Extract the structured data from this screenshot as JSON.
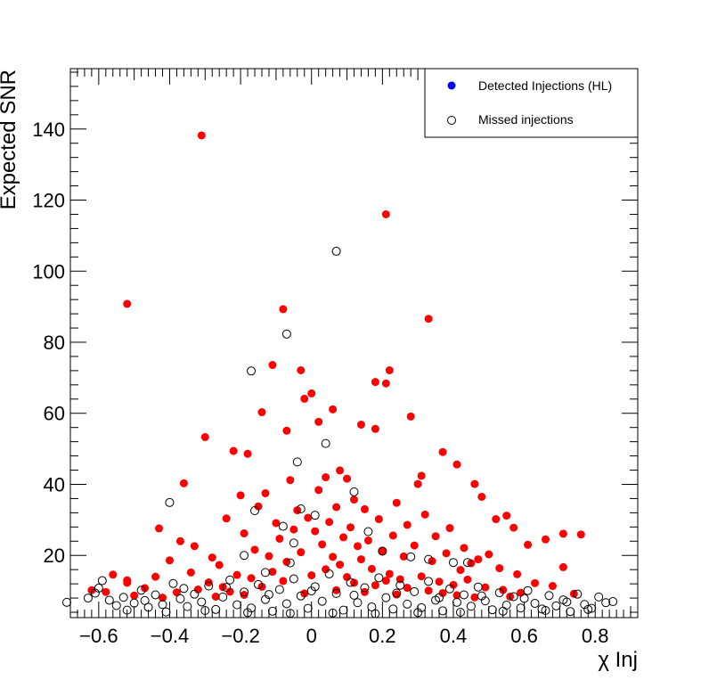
{
  "chart_data": {
    "type": "scatter",
    "title": "",
    "xlabel": "χ Inj",
    "ylabel": "Expected SNR",
    "xlim": [
      -0.68,
      0.92
    ],
    "ylim": [
      2.5,
      157
    ],
    "x_ticks": [
      -0.6,
      -0.4,
      -0.2,
      0,
      0.2,
      0.4,
      0.6,
      0.8
    ],
    "x_tick_labels": [
      "−0.6",
      "−0.4",
      "−0.2",
      "0",
      "0.2",
      "0.4",
      "0.6",
      "0.8"
    ],
    "y_ticks": [
      20,
      40,
      60,
      80,
      100,
      120,
      140
    ],
    "y_tick_labels": [
      "20",
      "40",
      "60",
      "80",
      "100",
      "120",
      "140"
    ],
    "grid": false,
    "legend_position": "top-right",
    "colors": {
      "detected": "#ff0000",
      "legend_detected_marker": "#0000ff",
      "missed": "#000000"
    },
    "series": [
      {
        "name": "Detected Injections (HL)",
        "marker": "filled-circle",
        "points": [
          [
            -0.31,
            138.2
          ],
          [
            0.21,
            116.0
          ],
          [
            -0.52,
            90.8
          ],
          [
            0.33,
            86.6
          ],
          [
            -0.08,
            89.3
          ],
          [
            -0.11,
            73.6
          ],
          [
            0.22,
            72.1
          ],
          [
            0.18,
            68.8
          ],
          [
            0.21,
            68.4
          ],
          [
            -0.03,
            72.1
          ],
          [
            -0.02,
            64.1
          ],
          [
            0.0,
            65.6
          ],
          [
            -0.3,
            53.3
          ],
          [
            0.28,
            59.1
          ],
          [
            -0.14,
            60.3
          ],
          [
            0.06,
            61.1
          ],
          [
            0.02,
            57.6
          ],
          [
            -0.07,
            55.1
          ],
          [
            0.14,
            56.8
          ],
          [
            0.18,
            55.6
          ],
          [
            -0.22,
            49.4
          ],
          [
            -0.18,
            48.6
          ],
          [
            0.37,
            49.1
          ],
          [
            0.41,
            45.6
          ],
          [
            -0.36,
            40.3
          ],
          [
            0.31,
            42.4
          ],
          [
            0.3,
            40.1
          ],
          [
            -0.2,
            36.9
          ],
          [
            0.46,
            40.1
          ],
          [
            0.48,
            36.5
          ],
          [
            -0.43,
            27.6
          ],
          [
            -0.52,
            13.0
          ],
          [
            0.76,
            25.9
          ],
          [
            0.71,
            26.1
          ],
          [
            0.66,
            24.5
          ],
          [
            0.55,
            31.2
          ],
          [
            0.57,
            27.8
          ],
          [
            0.52,
            30.2
          ],
          [
            0.61,
            23.0
          ],
          [
            0.71,
            16.7
          ],
          [
            -0.56,
            14.6
          ],
          [
            -0.52,
            12.3
          ],
          [
            -0.62,
            10.2
          ],
          [
            -0.58,
            9.7
          ],
          [
            -0.47,
            10.8
          ],
          [
            -0.4,
            18.6
          ],
          [
            -0.37,
            24.0
          ],
          [
            -0.33,
            22.6
          ],
          [
            -0.28,
            19.4
          ],
          [
            -0.24,
            30.4
          ],
          [
            -0.19,
            26.2
          ],
          [
            -0.15,
            33.8
          ],
          [
            -0.13,
            37.5
          ],
          [
            -0.1,
            29.1
          ],
          [
            -0.06,
            41.2
          ],
          [
            -0.04,
            32.7
          ],
          [
            0.02,
            38.4
          ],
          [
            0.04,
            42.0
          ],
          [
            0.08,
            43.9
          ],
          [
            0.1,
            41.6
          ],
          [
            0.12,
            35.7
          ],
          [
            0.15,
            33.0
          ],
          [
            0.19,
            30.2
          ],
          [
            0.24,
            34.8
          ],
          [
            0.27,
            28.6
          ],
          [
            0.32,
            31.5
          ],
          [
            0.35,
            25.4
          ],
          [
            0.39,
            27.7
          ],
          [
            0.43,
            22.1
          ],
          [
            0.47,
            18.9
          ],
          [
            0.5,
            20.3
          ],
          [
            0.53,
            16.4
          ],
          [
            0.58,
            14.7
          ],
          [
            0.63,
            12.2
          ],
          [
            0.68,
            11.4
          ],
          [
            0.74,
            9.2
          ],
          [
            -0.44,
            14.0
          ],
          [
            -0.34,
            15.2
          ],
          [
            -0.26,
            17.3
          ],
          [
            -0.21,
            14.5
          ],
          [
            -0.16,
            21.6
          ],
          [
            -0.12,
            19.8
          ],
          [
            -0.09,
            24.7
          ],
          [
            -0.05,
            27.3
          ],
          [
            -0.01,
            30.6
          ],
          [
            0.01,
            26.8
          ],
          [
            0.05,
            29.4
          ],
          [
            0.07,
            33.6
          ],
          [
            0.09,
            25.1
          ],
          [
            0.11,
            27.9
          ],
          [
            0.13,
            22.6
          ],
          [
            0.16,
            24.2
          ],
          [
            0.2,
            21.3
          ],
          [
            0.23,
            25.6
          ],
          [
            0.26,
            19.7
          ],
          [
            0.29,
            22.8
          ],
          [
            0.34,
            18.4
          ],
          [
            0.38,
            20.6
          ],
          [
            0.42,
            15.9
          ],
          [
            0.45,
            17.8
          ],
          [
            -0.29,
            12.4
          ],
          [
            -0.25,
            11.1
          ],
          [
            -0.17,
            13.6
          ],
          [
            -0.11,
            15.4
          ],
          [
            -0.07,
            18.2
          ],
          [
            -0.03,
            20.9
          ],
          [
            0.03,
            23.1
          ],
          [
            0.06,
            19.6
          ],
          [
            0.08,
            17.4
          ],
          [
            0.14,
            18.9
          ],
          [
            0.17,
            16.2
          ],
          [
            0.22,
            14.8
          ],
          [
            0.25,
            13.3
          ],
          [
            0.31,
            14.1
          ],
          [
            0.36,
            12.6
          ],
          [
            0.4,
            11.7
          ],
          [
            0.44,
            13.2
          ],
          [
            0.49,
            11.0
          ],
          [
            0.54,
            10.3
          ],
          [
            0.59,
            9.5
          ],
          [
            -0.38,
            9.6
          ],
          [
            -0.32,
            10.4
          ],
          [
            -0.23,
            9.8
          ],
          [
            -0.14,
            11.2
          ],
          [
            -0.08,
            12.8
          ],
          [
            0.0,
            14.4
          ],
          [
            0.04,
            16.1
          ],
          [
            0.1,
            13.9
          ],
          [
            0.12,
            12.3
          ],
          [
            0.18,
            11.6
          ],
          [
            0.21,
            12.9
          ],
          [
            0.27,
            10.9
          ],
          [
            0.33,
            10.1
          ],
          [
            0.37,
            9.4
          ],
          [
            0.41,
            8.8
          ],
          [
            -0.5,
            8.7
          ],
          [
            -0.42,
            8.1
          ],
          [
            -0.27,
            8.4
          ],
          [
            -0.19,
            8.9
          ],
          [
            -0.02,
            9.3
          ],
          [
            0.07,
            10.2
          ],
          [
            0.15,
            9.7
          ],
          [
            0.24,
            9.0
          ],
          [
            0.46,
            8.2
          ],
          [
            0.56,
            8.4
          ]
        ]
      },
      {
        "name": "Missed injections",
        "marker": "open-circle",
        "points": [
          [
            0.07,
            105.6
          ],
          [
            -0.07,
            82.3
          ],
          [
            -0.17,
            71.9
          ],
          [
            0.04,
            51.5
          ],
          [
            -0.4,
            34.9
          ],
          [
            -0.04,
            46.3
          ],
          [
            0.12,
            37.9
          ],
          [
            -0.03,
            33.1
          ],
          [
            -0.19,
            20.0
          ],
          [
            -0.16,
            32.6
          ],
          [
            0.01,
            31.3
          ],
          [
            -0.08,
            28.2
          ],
          [
            0.28,
            19.6
          ],
          [
            0.44,
            18.0
          ],
          [
            0.33,
            18.9
          ],
          [
            -0.06,
            17.9
          ],
          [
            0.2,
            21.2
          ],
          [
            -0.13,
            15.2
          ],
          [
            -0.05,
            23.5
          ],
          [
            0.16,
            26.7
          ],
          [
            -0.69,
            6.8
          ],
          [
            -0.61,
            9.4
          ],
          [
            -0.59,
            12.9
          ],
          [
            -0.57,
            7.4
          ],
          [
            -0.55,
            5.9
          ],
          [
            -0.53,
            8.2
          ],
          [
            -0.5,
            6.6
          ],
          [
            -0.48,
            10.2
          ],
          [
            -0.46,
            5.4
          ],
          [
            -0.44,
            8.9
          ],
          [
            -0.42,
            6.2
          ],
          [
            -0.39,
            12.1
          ],
          [
            -0.37,
            7.8
          ],
          [
            -0.35,
            5.6
          ],
          [
            -0.33,
            9.1
          ],
          [
            -0.31,
            6.9
          ],
          [
            -0.29,
            11.4
          ],
          [
            -0.27,
            4.8
          ],
          [
            -0.25,
            8.3
          ],
          [
            -0.23,
            13.1
          ],
          [
            -0.21,
            6.1
          ],
          [
            -0.19,
            9.7
          ],
          [
            -0.17,
            5.2
          ],
          [
            -0.15,
            11.8
          ],
          [
            -0.13,
            7.6
          ],
          [
            -0.11,
            4.3
          ],
          [
            -0.09,
            10.4
          ],
          [
            -0.07,
            6.4
          ],
          [
            -0.05,
            13.4
          ],
          [
            -0.03,
            8.6
          ],
          [
            -0.01,
            5.1
          ],
          [
            0.01,
            11.2
          ],
          [
            0.03,
            7.1
          ],
          [
            0.05,
            14.8
          ],
          [
            0.07,
            9.3
          ],
          [
            0.09,
            4.6
          ],
          [
            0.11,
            12.4
          ],
          [
            0.13,
            6.7
          ],
          [
            0.15,
            10.9
          ],
          [
            0.17,
            5.5
          ],
          [
            0.19,
            13.7
          ],
          [
            0.21,
            8.1
          ],
          [
            0.23,
            4.9
          ],
          [
            0.25,
            11.6
          ],
          [
            0.27,
            6.3
          ],
          [
            0.29,
            9.8
          ],
          [
            0.31,
            5.3
          ],
          [
            0.33,
            12.7
          ],
          [
            0.35,
            7.4
          ],
          [
            0.37,
            4.4
          ],
          [
            0.39,
            10.6
          ],
          [
            0.41,
            6.8
          ],
          [
            0.43,
            8.9
          ],
          [
            0.45,
            5.7
          ],
          [
            0.47,
            11.1
          ],
          [
            0.49,
            7.2
          ],
          [
            0.51,
            4.7
          ],
          [
            0.53,
            9.5
          ],
          [
            0.55,
            6.0
          ],
          [
            0.57,
            8.4
          ],
          [
            0.59,
            5.2
          ],
          [
            0.61,
            10.1
          ],
          [
            0.63,
            6.5
          ],
          [
            0.65,
            4.9
          ],
          [
            0.67,
            8.7
          ],
          [
            0.69,
            5.8
          ],
          [
            0.71,
            7.5
          ],
          [
            0.73,
            4.2
          ],
          [
            0.75,
            9.1
          ],
          [
            0.77,
            6.2
          ],
          [
            0.79,
            5.1
          ],
          [
            0.81,
            8.3
          ],
          [
            0.83,
            6.7
          ],
          [
            0.85,
            7.0
          ],
          [
            0.4,
            18.0
          ],
          [
            -0.63,
            8.0
          ],
          [
            -0.6,
            10.8
          ],
          [
            -0.52,
            4.6
          ],
          [
            -0.47,
            7.3
          ],
          [
            -0.41,
            4.1
          ],
          [
            -0.36,
            10.7
          ],
          [
            -0.3,
            4.5
          ],
          [
            -0.24,
            11.0
          ],
          [
            -0.18,
            3.9
          ],
          [
            -0.12,
            9.0
          ],
          [
            -0.06,
            3.7
          ],
          [
            0.0,
            10.0
          ],
          [
            0.06,
            3.8
          ],
          [
            0.12,
            8.8
          ],
          [
            0.18,
            3.6
          ],
          [
            0.24,
            9.4
          ],
          [
            0.3,
            3.9
          ],
          [
            0.36,
            8.1
          ],
          [
            0.42,
            4.0
          ],
          [
            0.48,
            8.6
          ],
          [
            0.54,
            4.3
          ],
          [
            0.6,
            7.9
          ],
          [
            0.66,
            4.5
          ],
          [
            0.72,
            6.9
          ],
          [
            0.78,
            4.8
          ]
        ]
      }
    ]
  }
}
